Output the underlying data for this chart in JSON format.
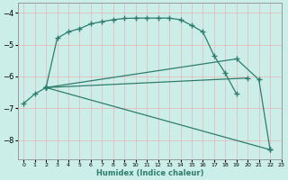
{
  "xlabel": "Humidex (Indice chaleur)",
  "xlim": [
    -0.5,
    23
  ],
  "ylim": [
    -8.6,
    -3.7
  ],
  "yticks": [
    -8,
    -7,
    -6,
    -5,
    -4
  ],
  "xticks": [
    0,
    1,
    2,
    3,
    4,
    5,
    6,
    7,
    8,
    9,
    10,
    11,
    12,
    13,
    14,
    15,
    16,
    17,
    18,
    19,
    20,
    21,
    22,
    23
  ],
  "bg_color": "#cceee8",
  "grid_color": "#e8b4b4",
  "line_color": "#2e7d6e",
  "line1_x": [
    0,
    1,
    2,
    3,
    4,
    5,
    6,
    7,
    8,
    9,
    10,
    11,
    12,
    13,
    14,
    15,
    16,
    17,
    18,
    19
  ],
  "line1_y": [
    -6.85,
    -6.55,
    -6.35,
    -4.8,
    -4.6,
    -4.5,
    -4.35,
    -4.28,
    -4.22,
    -4.18,
    -4.17,
    -4.17,
    -4.17,
    -4.17,
    -4.22,
    -4.4,
    -4.6,
    -5.35,
    -5.9,
    -6.55
  ],
  "line2_x": [
    2,
    19,
    21,
    22
  ],
  "line2_y": [
    -6.35,
    -5.45,
    -6.1,
    -8.3
  ],
  "line3_x": [
    2,
    20
  ],
  "line3_y": [
    -6.35,
    -6.05
  ],
  "line4_x": [
    2,
    22
  ],
  "line4_y": [
    -6.35,
    -8.3
  ]
}
